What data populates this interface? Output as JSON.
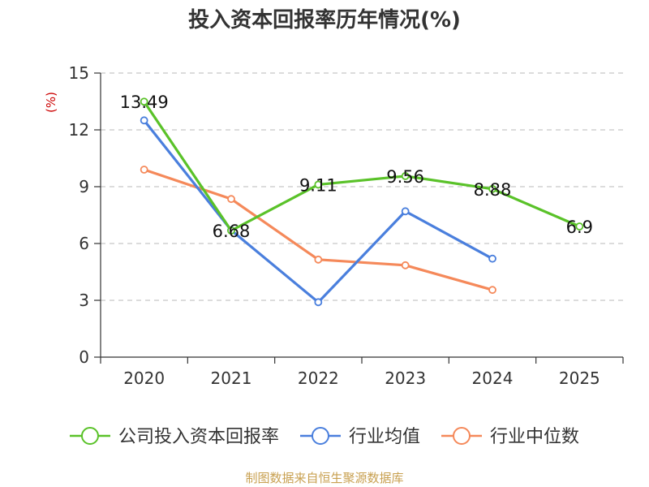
{
  "chart_data": {
    "type": "line",
    "title": "投入资本回报率历年情况(%)",
    "ylabel": "(%)",
    "xlabel": "",
    "categories": [
      "2020",
      "2021",
      "2022",
      "2023",
      "2024",
      "2025"
    ],
    "ylim": [
      0,
      15
    ],
    "yticks": [
      0,
      3,
      6,
      9,
      12,
      15
    ],
    "grid": true,
    "series": [
      {
        "name": "公司投入资本回报率",
        "color": "#5ac229",
        "values": [
          13.49,
          6.68,
          9.11,
          9.56,
          8.88,
          6.9
        ],
        "labels": [
          "13.49",
          "6.68",
          "9.11",
          "9.56",
          "8.88",
          "6.9"
        ]
      },
      {
        "name": "行业均值",
        "color": "#4a7fdd",
        "values": [
          12.5,
          6.7,
          2.9,
          7.7,
          5.2,
          null
        ]
      },
      {
        "name": "行业中位数",
        "color": "#f5895a",
        "values": [
          9.9,
          8.35,
          5.15,
          4.85,
          3.55,
          null
        ]
      }
    ],
    "legend_position": "bottom",
    "source": "制图数据来自恒生聚源数据库"
  }
}
